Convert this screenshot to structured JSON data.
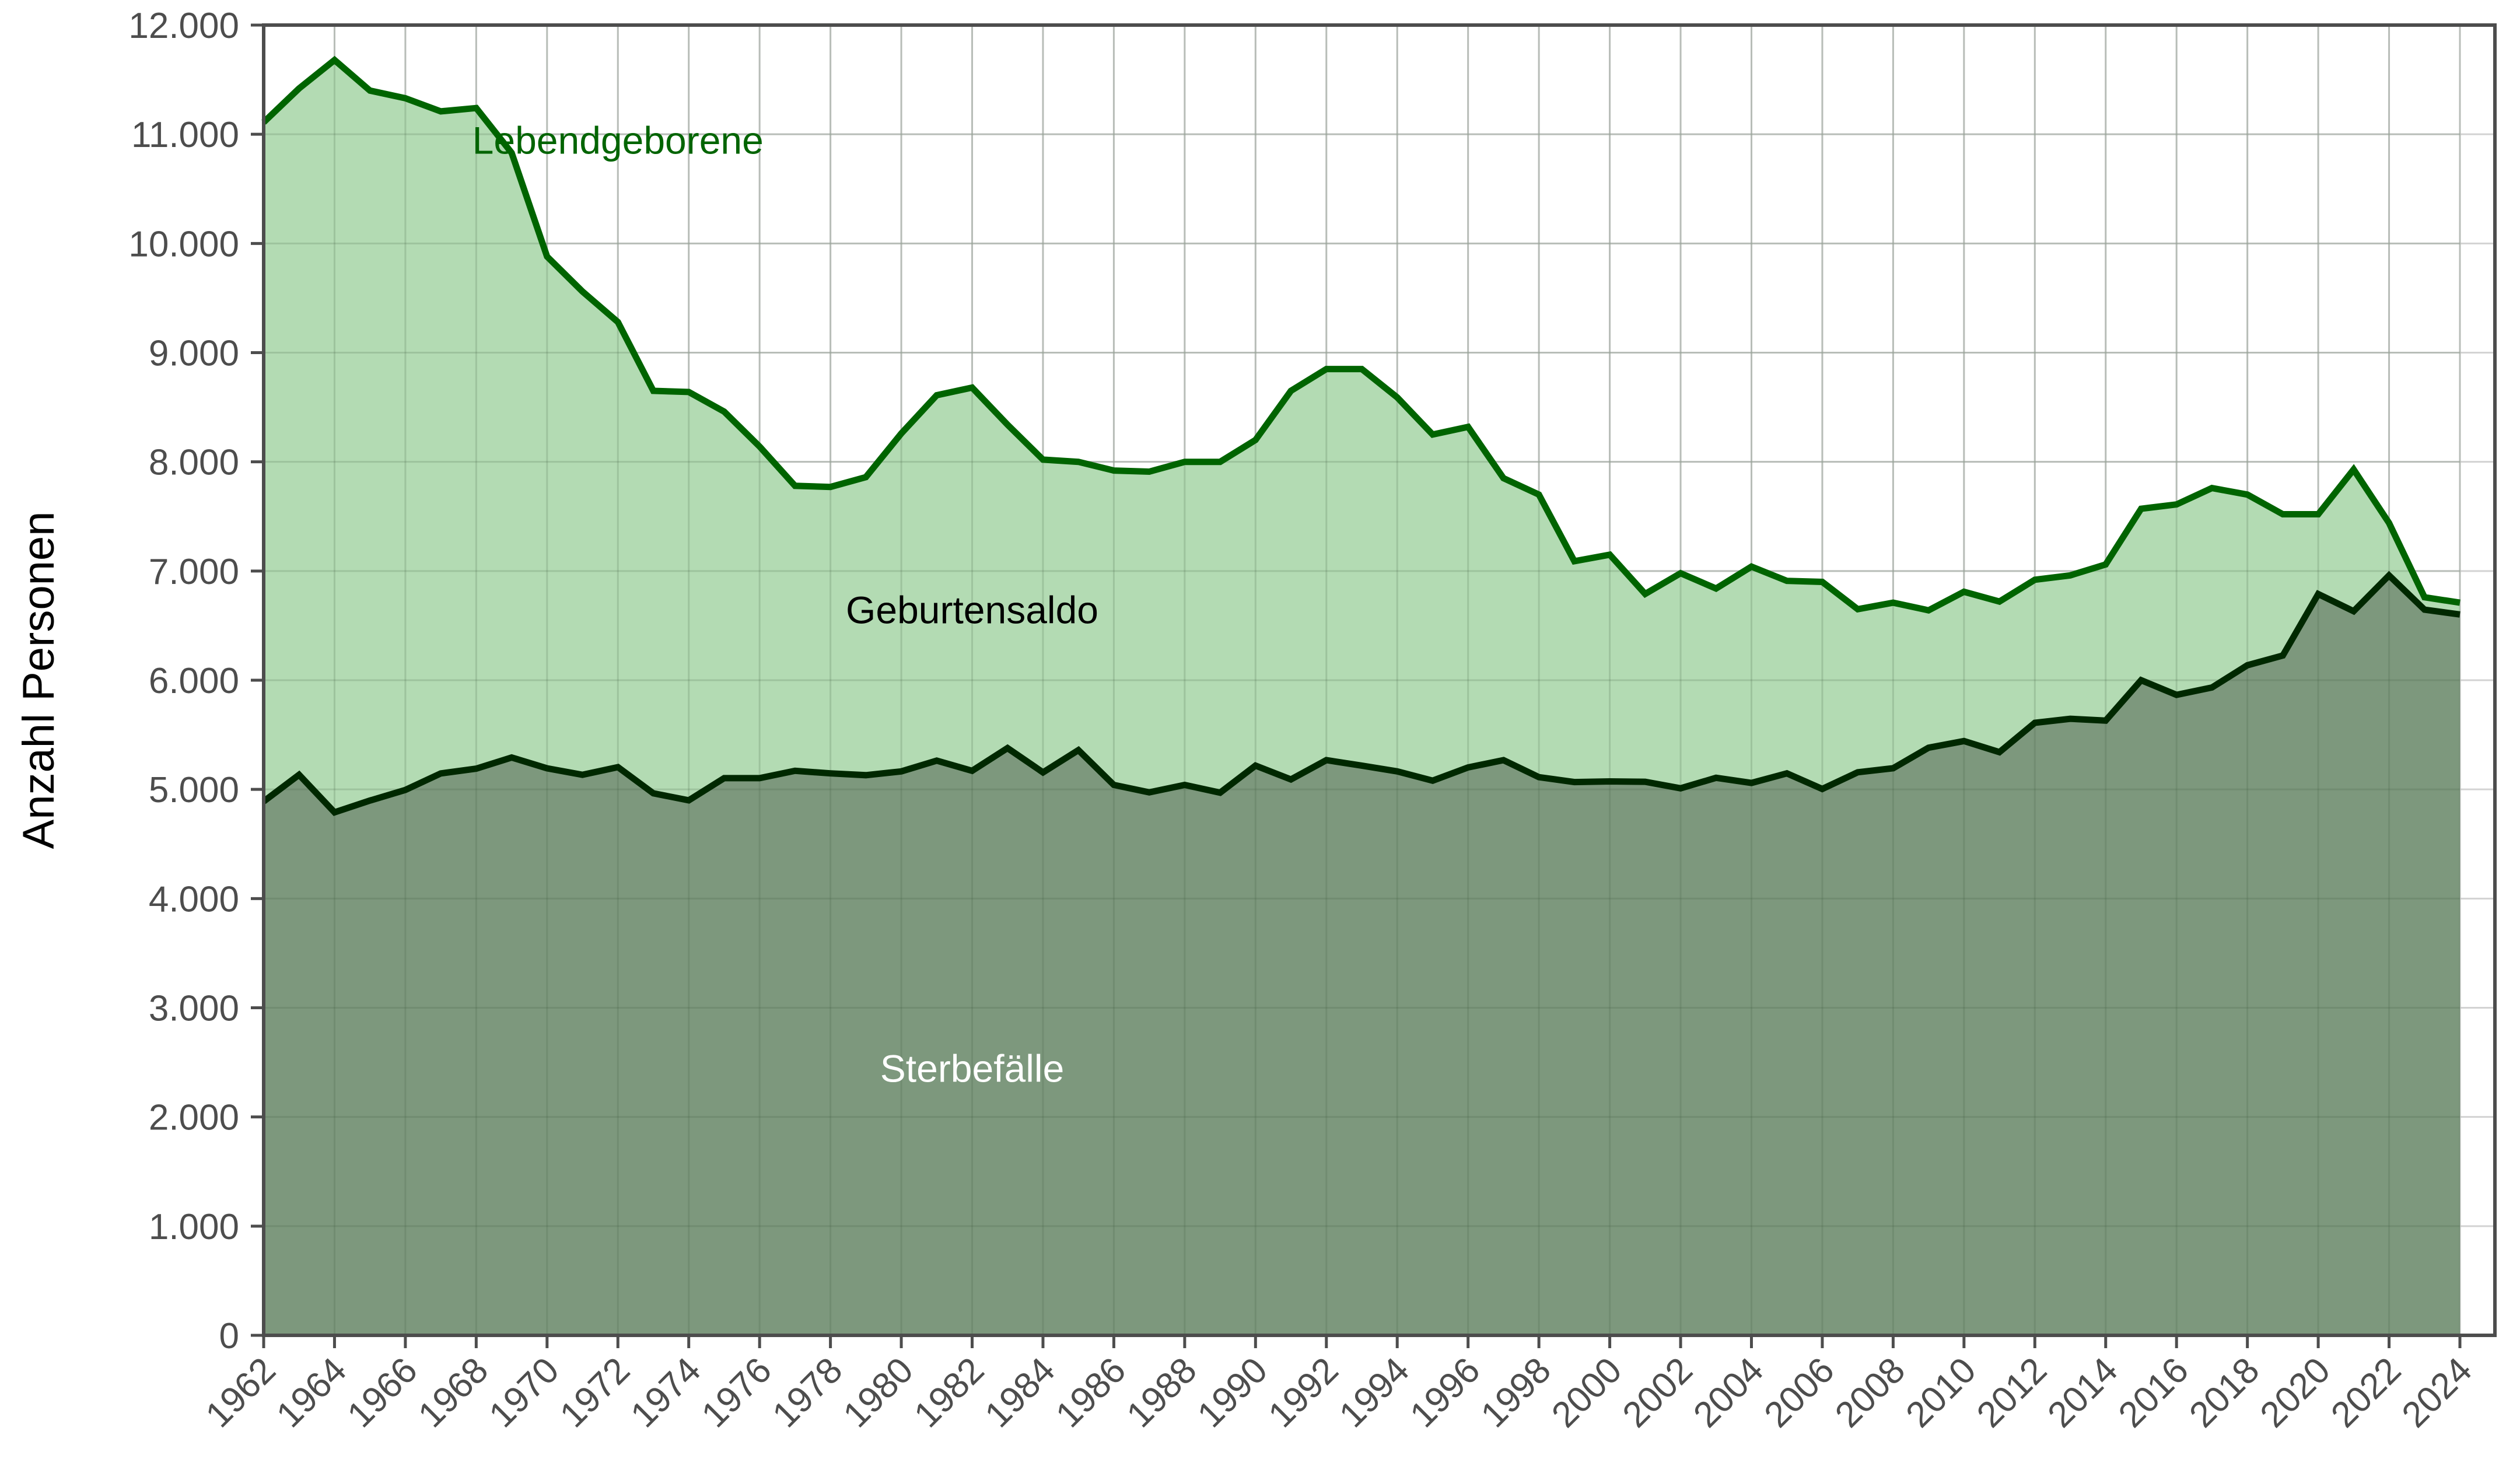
{
  "chart_data": {
    "type": "area",
    "title": "",
    "xlabel": "",
    "ylabel": "Anzahl Personen",
    "ylim": [
      0,
      12000
    ],
    "xlim": [
      1962,
      2024
    ],
    "grid": true,
    "legend": "none (inline labels)",
    "y_ticks": [
      0,
      1000,
      2000,
      3000,
      4000,
      5000,
      6000,
      7000,
      8000,
      9000,
      10000,
      11000,
      12000
    ],
    "y_tick_labels": [
      "0",
      "1.000",
      "2.000",
      "3.000",
      "4.000",
      "5.000",
      "6.000",
      "7.000",
      "8.000",
      "9.000",
      "10.000",
      "11.000",
      "12.000"
    ],
    "x_tick_labels": [
      "1962",
      "1964",
      "1966",
      "1968",
      "1970",
      "1972",
      "1974",
      "1976",
      "1978",
      "1980",
      "1982",
      "1984",
      "1986",
      "1988",
      "1990",
      "1992",
      "1994",
      "1996",
      "1998",
      "2000",
      "2002",
      "2004",
      "2006",
      "2008",
      "2010",
      "2012",
      "2014",
      "2016",
      "2018",
      "2020",
      "2022",
      "2024"
    ],
    "x": [
      1962,
      1963,
      1964,
      1965,
      1966,
      1967,
      1968,
      1969,
      1970,
      1971,
      1972,
      1973,
      1974,
      1975,
      1976,
      1977,
      1978,
      1979,
      1980,
      1981,
      1982,
      1983,
      1984,
      1985,
      1986,
      1987,
      1988,
      1989,
      1990,
      1991,
      1992,
      1993,
      1994,
      1995,
      1996,
      1997,
      1998,
      1999,
      2000,
      2001,
      2002,
      2003,
      2004,
      2005,
      2006,
      2007,
      2008,
      2009,
      2010,
      2011,
      2012,
      2013,
      2014,
      2015,
      2016,
      2017,
      2018,
      2019,
      2020,
      2021,
      2022,
      2023,
      2024
    ],
    "series": [
      {
        "name": "Lebendgeborene",
        "color": "#006400",
        "fill": "#b3dbb3",
        "values": [
          11110,
          11420,
          11680,
          11400,
          11330,
          11210,
          11240,
          10830,
          9880,
          9560,
          9280,
          8650,
          8640,
          8460,
          8140,
          7780,
          7770,
          7860,
          8260,
          8610,
          8680,
          8340,
          8020,
          8000,
          7920,
          7910,
          8000,
          8000,
          8200,
          8650,
          8850,
          8850,
          8590,
          8250,
          8320,
          7850,
          7700,
          7090,
          7150,
          6790,
          6980,
          6840,
          7040,
          6910,
          6900,
          6650,
          6710,
          6640,
          6810,
          6720,
          6920,
          6960,
          7060,
          7570,
          7610,
          7760,
          7700,
          7520,
          7520,
          7930,
          7440,
          6760,
          6710
        ]
      },
      {
        "name": "Sterbefälle",
        "color": "#002800",
        "fill": "#7d987d",
        "values": [
          4890,
          5134,
          4790,
          4898,
          4995,
          5146,
          5190,
          5292,
          5193,
          5134,
          5204,
          4964,
          4900,
          5103,
          5103,
          5170,
          5147,
          5130,
          5165,
          5263,
          5170,
          5378,
          5156,
          5360,
          5041,
          4973,
          5041,
          4970,
          5218,
          5091,
          5268,
          5218,
          5165,
          5080,
          5201,
          5268,
          5112,
          5067,
          5073,
          5070,
          5010,
          5106,
          5059,
          5147,
          5004,
          5157,
          5194,
          5382,
          5443,
          5341,
          5610,
          5647,
          5630,
          6000,
          5866,
          5933,
          6137,
          6226,
          6789,
          6632,
          6960,
          6646,
          6602
        ]
      }
    ],
    "annotations": [
      {
        "text": "Lebendgeborene",
        "color": "#006400",
        "x": 1972,
        "y": 10950
      },
      {
        "text": "Geburtensaldo",
        "color": "#000000",
        "x": 1982,
        "y": 6650
      },
      {
        "text": "Sterbefälle",
        "color": "#ffffff",
        "x": 1982,
        "y": 2450
      }
    ],
    "colors": {
      "grid_light": "#d3d3d3",
      "axis": "#4d4d4d",
      "background": "#ffffff"
    }
  }
}
